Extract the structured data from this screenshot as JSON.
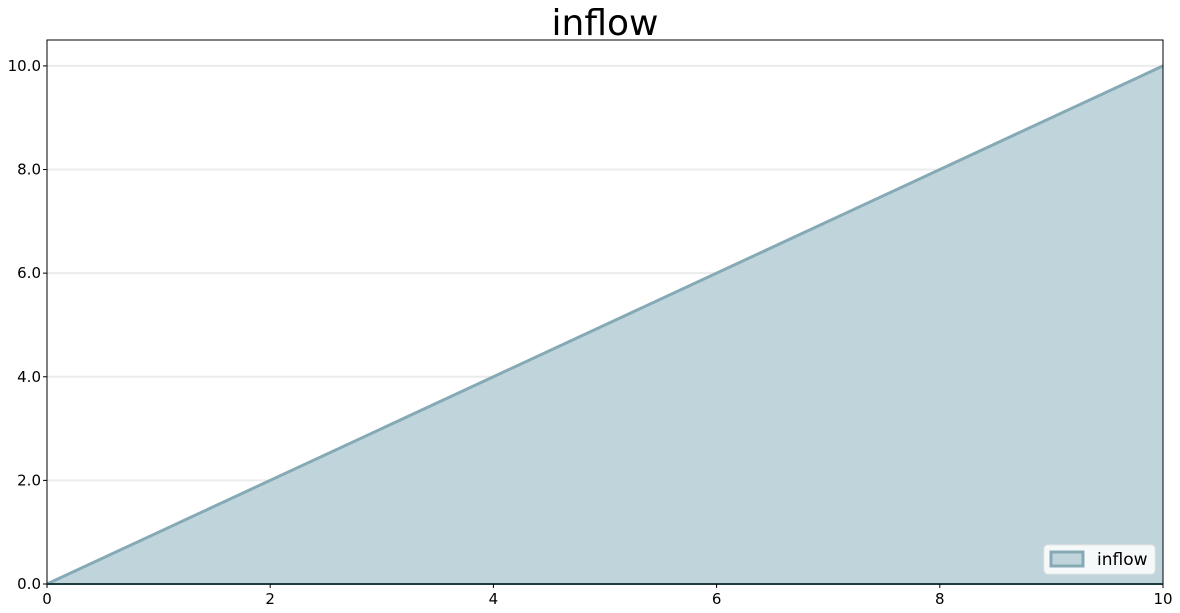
{
  "chart_data": {
    "type": "area",
    "title": "inflow",
    "xlabel": "",
    "ylabel": "",
    "xlim": [
      0,
      10
    ],
    "ylim": [
      0,
      10.5
    ],
    "xticks": [
      0,
      2,
      4,
      6,
      8,
      10
    ],
    "xtick_labels": [
      "0",
      "2",
      "4",
      "6",
      "8",
      "10"
    ],
    "yticks": [
      0,
      2,
      4,
      6,
      8,
      10
    ],
    "ytick_labels": [
      "0.0",
      "2.0",
      "4.0",
      "6.0",
      "8.0",
      "10.0"
    ],
    "grid": "horizontal",
    "legend_position": "bottom-right",
    "series": [
      {
        "name": "inflow",
        "x": [
          0,
          10
        ],
        "y": [
          0,
          10
        ],
        "fill_color": "#c0d4db",
        "line_color": "#86aab5"
      }
    ]
  }
}
